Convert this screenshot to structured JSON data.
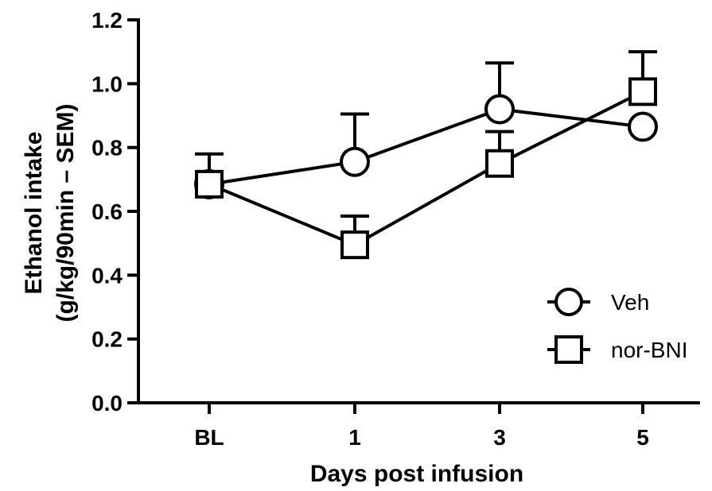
{
  "chart_data": {
    "type": "line",
    "categories": [
      "BL",
      "1",
      "3",
      "5"
    ],
    "xlabel": "Days post infusion",
    "ylabel_lines": [
      "Ethanol intake",
      "(g/kg/90min – SEM)"
    ],
    "ylim": [
      0,
      1.2
    ],
    "yticks": [
      "0.0",
      "0.2",
      "0.4",
      "0.6",
      "0.8",
      "1.0",
      "1.2"
    ],
    "grid": false,
    "legend_position": "bottom-right",
    "series": [
      {
        "name": "Veh",
        "marker": "circle",
        "values": [
          0.685,
          0.755,
          0.92,
          0.865
        ],
        "errors": [
          0.095,
          0.15,
          0.145,
          0.0
        ]
      },
      {
        "name": "nor-BNI",
        "marker": "square",
        "values": [
          0.685,
          0.495,
          0.75,
          0.975
        ],
        "errors": [
          0.0,
          0.09,
          0.1,
          0.125
        ]
      }
    ]
  }
}
